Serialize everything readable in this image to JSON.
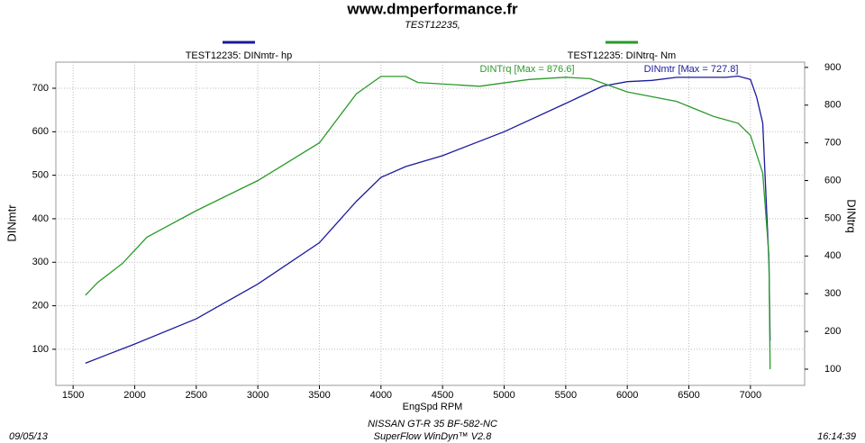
{
  "chart_data": {
    "type": "line",
    "title": "www.dmperformance.fr",
    "subtitle": "TEST12235,",
    "x_label": "EngSpd  RPM",
    "y_label": "DINmtr",
    "y2_label": "DINtrq",
    "footer_lines": [
      "NISSAN GT-R 35 BF-582-NC",
      "SuperFlow WinDyn™ V2.8"
    ],
    "date": "09/05/13",
    "time": "16:14:39",
    "annotations": [
      "DINTrq [Max = 876.6]",
      "DINmtr [Max = 727.8]"
    ],
    "grid": true,
    "xlim": [
      1360,
      7440
    ],
    "xticks": [
      1500,
      2000,
      2500,
      3000,
      3500,
      4000,
      4500,
      5000,
      5500,
      6000,
      6500,
      7000
    ],
    "ylim": [
      17,
      760
    ],
    "yticks": [
      100,
      200,
      300,
      400,
      500,
      600,
      700
    ],
    "y2lim": [
      57,
      914
    ],
    "y2ticks": [
      100,
      200,
      300,
      400,
      500,
      600,
      700,
      800,
      900
    ],
    "series": [
      {
        "name": "TEST12235: DINmtr-  hp",
        "color": "#1a1a9c",
        "axis": "y",
        "x": [
          1600,
          1800,
          2000,
          2500,
          3000,
          3500,
          3800,
          4000,
          4200,
          4500,
          5000,
          5500,
          5800,
          6000,
          6200,
          6400,
          6800,
          6900,
          7000,
          7050,
          7100,
          7150,
          7160
        ],
        "values": [
          68,
          90,
          112,
          170,
          250,
          345,
          440,
          495,
          520,
          545,
          600,
          665,
          705,
          715,
          718,
          725,
          725,
          728,
          720,
          680,
          620,
          300,
          120
        ]
      },
      {
        "name": "TEST12235: DINtrq-  Nm",
        "color": "#2a9a2a",
        "axis": "y2",
        "x": [
          1600,
          1700,
          1900,
          2100,
          2500,
          3000,
          3200,
          3500,
          3800,
          4000,
          4200,
          4300,
          4800,
          5200,
          5500,
          5700,
          6000,
          6400,
          6700,
          6900,
          7000,
          7100,
          7150,
          7160
        ],
        "values": [
          296,
          330,
          380,
          450,
          520,
          600,
          640,
          700,
          830,
          876,
          876,
          860,
          850,
          868,
          874,
          870,
          835,
          810,
          770,
          752,
          720,
          620,
          400,
          100
        ]
      }
    ]
  }
}
